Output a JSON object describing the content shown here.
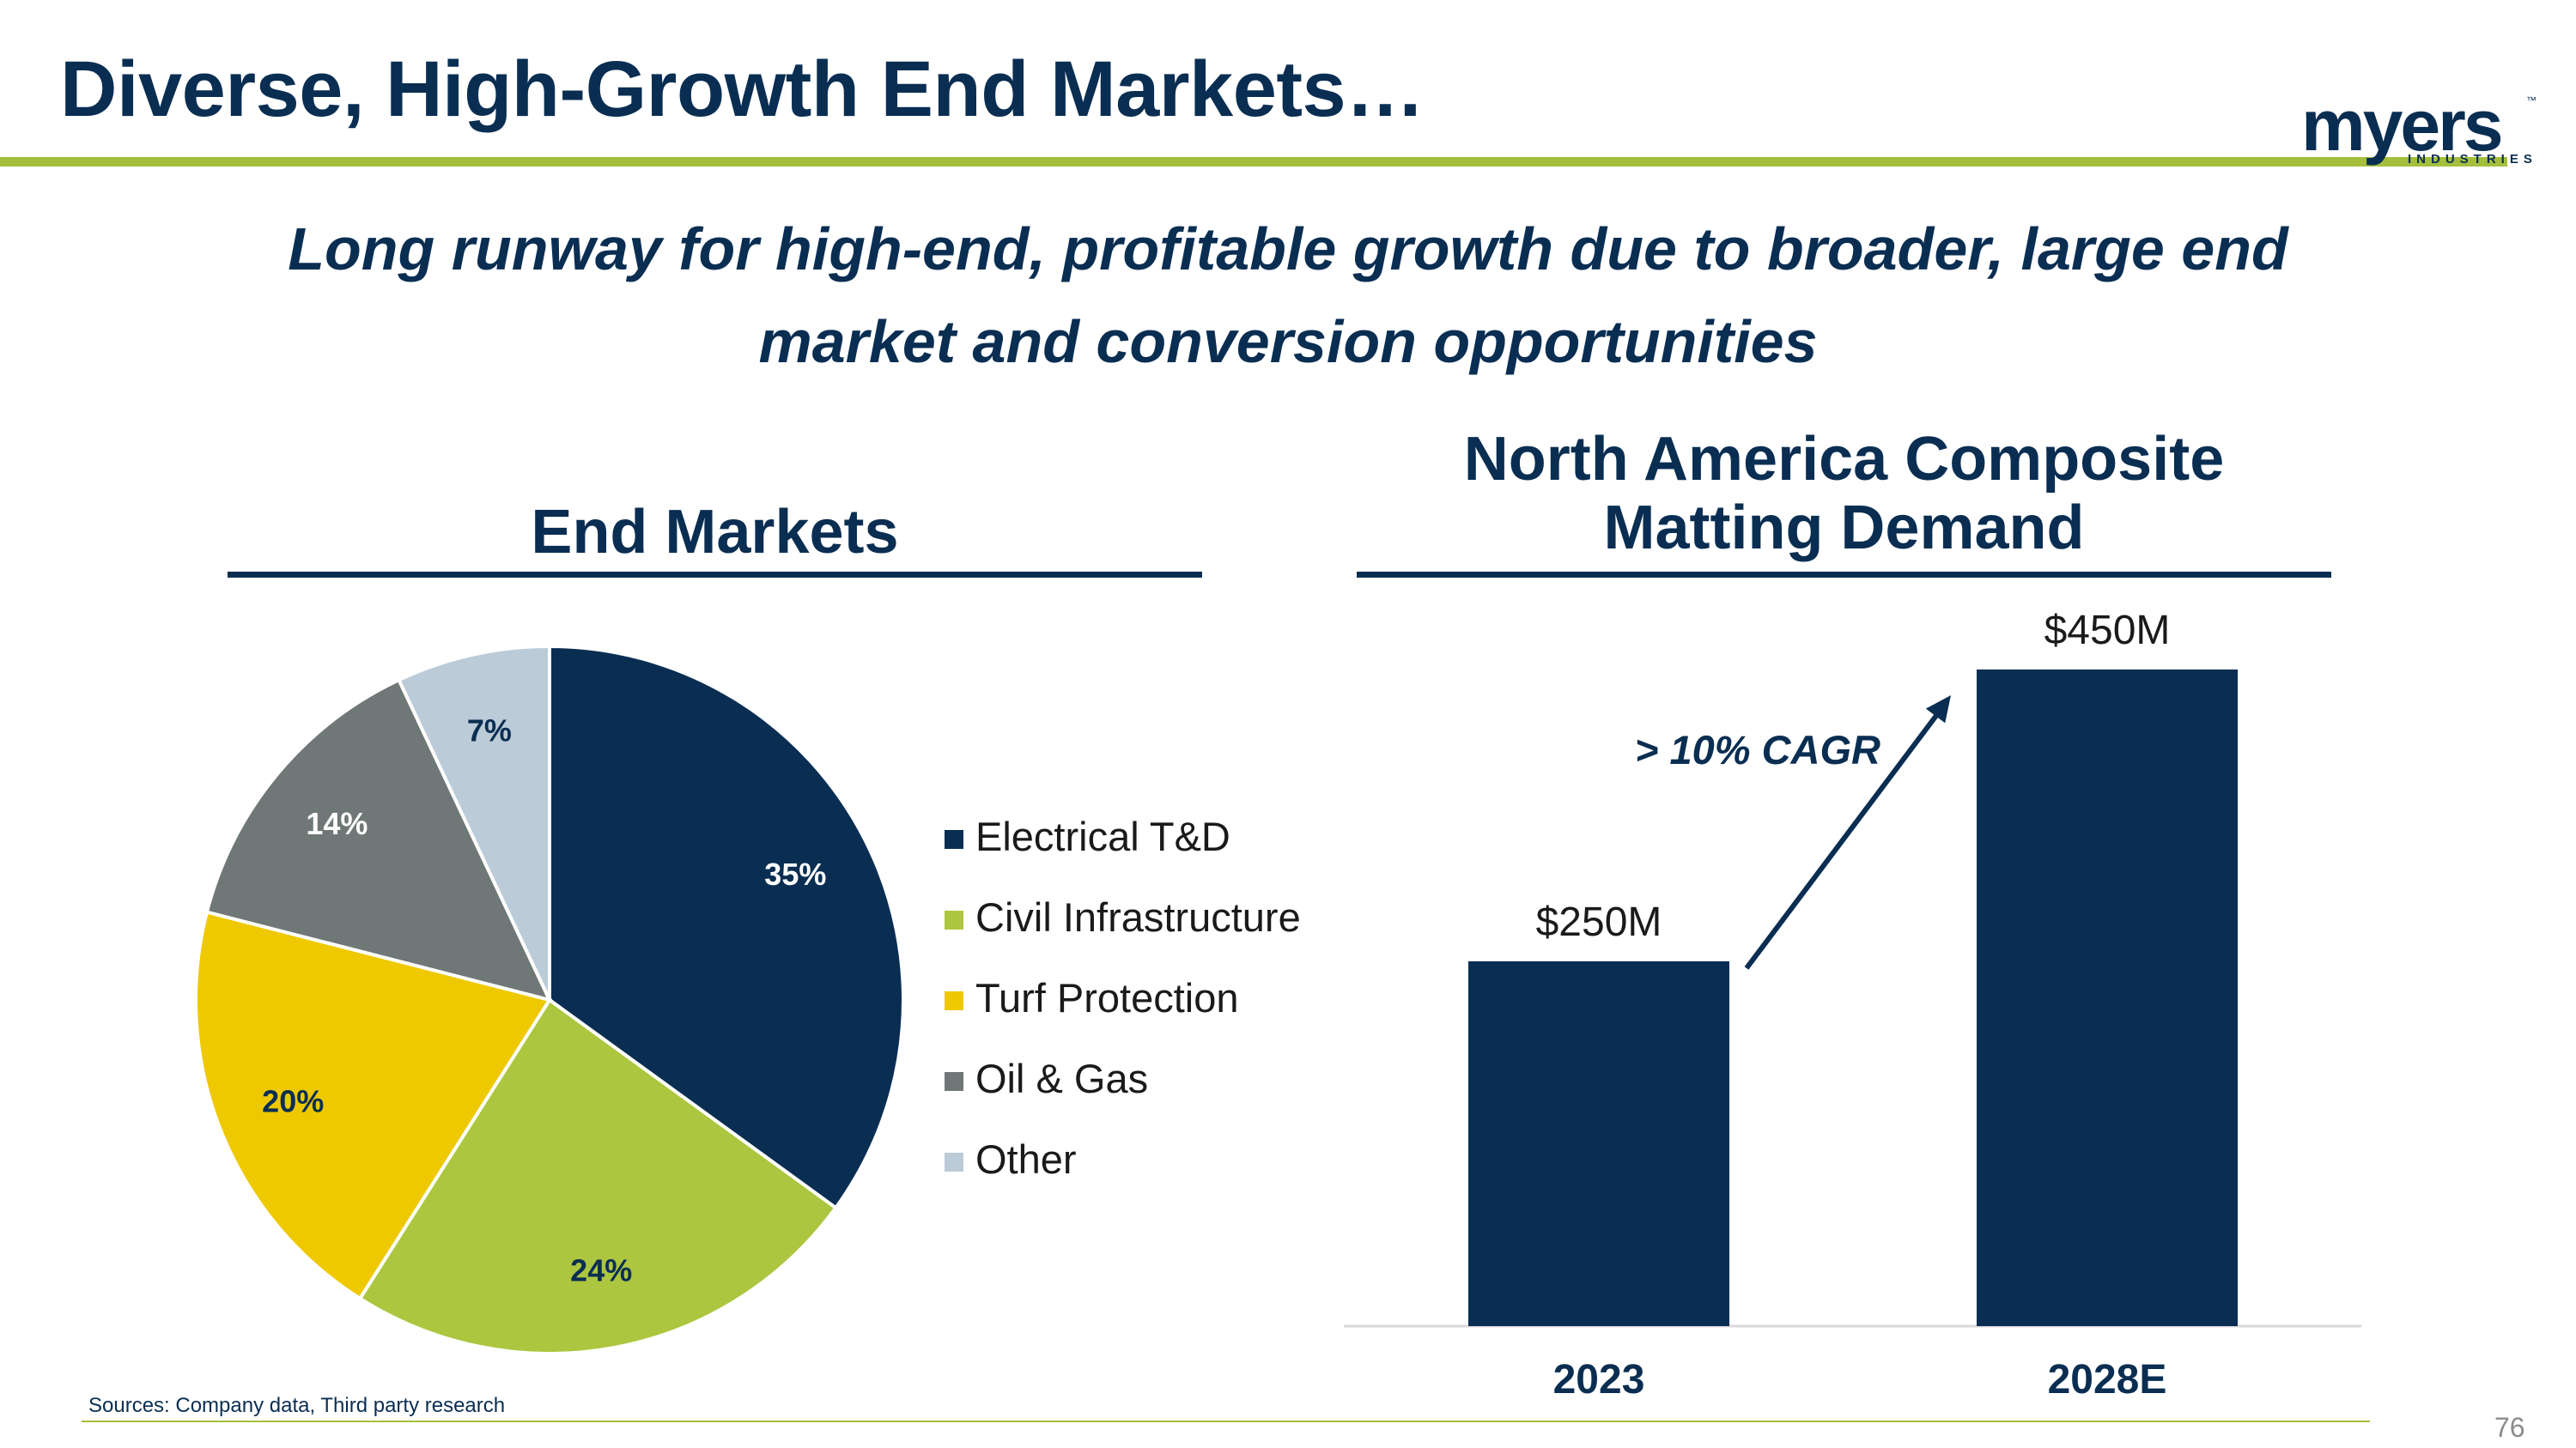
{
  "header": {
    "title": "Diverse, High-Growth End Markets…",
    "subtitle_line1": "Long runway for high-end, profitable growth due to broader, large end",
    "subtitle_line2": "market and conversion opportunities"
  },
  "logo": {
    "word": "myers",
    "tm": "™",
    "sub": "INDUSTRIES"
  },
  "sections": {
    "left_title": "End Markets",
    "right_title_line1": "North America Composite",
    "right_title_line2": "Matting Demand"
  },
  "chart_data": [
    {
      "type": "pie",
      "title": "End Markets",
      "categories": [
        "Electrical T&D",
        "Civil Infrastructure",
        "Turf Protection",
        "Oil & Gas",
        "Other"
      ],
      "values": [
        35,
        24,
        20,
        14,
        7
      ],
      "labels": [
        "35%",
        "24%",
        "20%",
        "14%",
        "7%"
      ],
      "colors": [
        "#0a2e52",
        "#adc63f",
        "#eec900",
        "#6f7877",
        "#bccbd8"
      ],
      "label_colors": [
        "#ffffff",
        "#0a2e52",
        "#0a2e52",
        "#ffffff",
        "#0a2e52"
      ],
      "legend_position": "right"
    },
    {
      "type": "bar",
      "title": "North America Composite Matting Demand",
      "categories": [
        "2023",
        "2028E"
      ],
      "values": [
        250,
        450
      ],
      "labels": [
        "$250M",
        "$450M"
      ],
      "unit": "$M",
      "ylim": [
        0,
        450
      ],
      "color": "#0a2e52",
      "annotation": "> 10% CAGR"
    }
  ],
  "footer": {
    "sources": "Sources:  Company data, Third party research",
    "page_number": "76"
  }
}
